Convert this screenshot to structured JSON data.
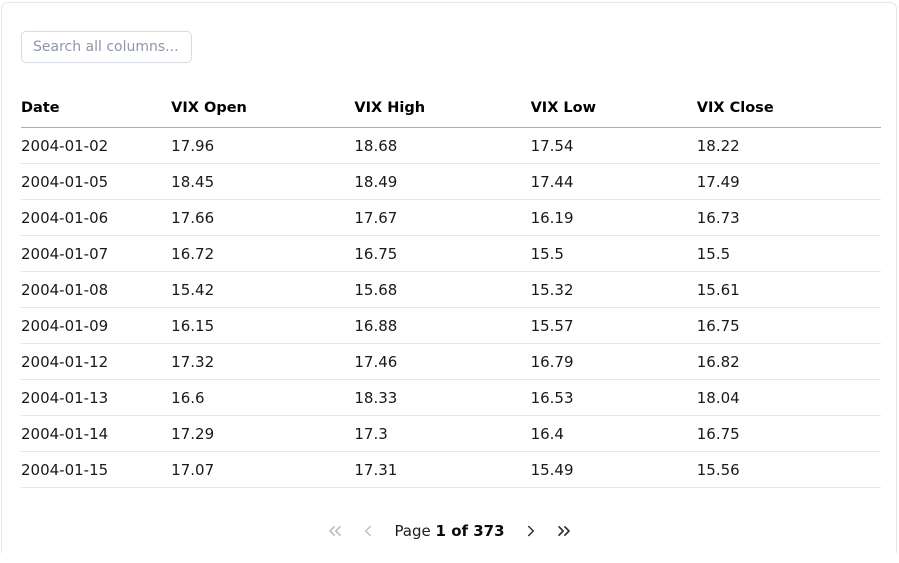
{
  "search": {
    "placeholder": "Search all columns..."
  },
  "table": {
    "columns": [
      "Date",
      "VIX Open",
      "VIX High",
      "VIX Low",
      "VIX Close"
    ],
    "rows": [
      [
        "2004-01-02",
        "17.96",
        "18.68",
        "17.54",
        "18.22"
      ],
      [
        "2004-01-05",
        "18.45",
        "18.49",
        "17.44",
        "17.49"
      ],
      [
        "2004-01-06",
        "17.66",
        "17.67",
        "16.19",
        "16.73"
      ],
      [
        "2004-01-07",
        "16.72",
        "16.75",
        "15.5",
        "15.5"
      ],
      [
        "2004-01-08",
        "15.42",
        "15.68",
        "15.32",
        "15.61"
      ],
      [
        "2004-01-09",
        "16.15",
        "16.88",
        "15.57",
        "16.75"
      ],
      [
        "2004-01-12",
        "17.32",
        "17.46",
        "16.79",
        "16.82"
      ],
      [
        "2004-01-13",
        "16.6",
        "18.33",
        "16.53",
        "18.04"
      ],
      [
        "2004-01-14",
        "17.29",
        "17.3",
        "16.4",
        "16.75"
      ],
      [
        "2004-01-15",
        "17.07",
        "17.31",
        "15.49",
        "15.56"
      ]
    ]
  },
  "pagination": {
    "page_label": "Page ",
    "page_info": "1 of 373",
    "buttons": [
      {
        "name": "first-page-button",
        "icon": "chevrons-left-icon",
        "disabled": true
      },
      {
        "name": "prev-page-button",
        "icon": "chevron-left-icon",
        "disabled": true
      },
      {
        "name": "next-page-button",
        "icon": "chevron-right-icon",
        "disabled": false
      },
      {
        "name": "last-page-button",
        "icon": "chevrons-right-icon",
        "disabled": false
      }
    ]
  },
  "colors": {
    "header_underline": "#a7b0bb",
    "row_divider": "#e3e8f0",
    "card_border": "#e2e8e9",
    "icon_enabled": "#2d2f33",
    "icon_disabled": "#bcbfc3"
  }
}
